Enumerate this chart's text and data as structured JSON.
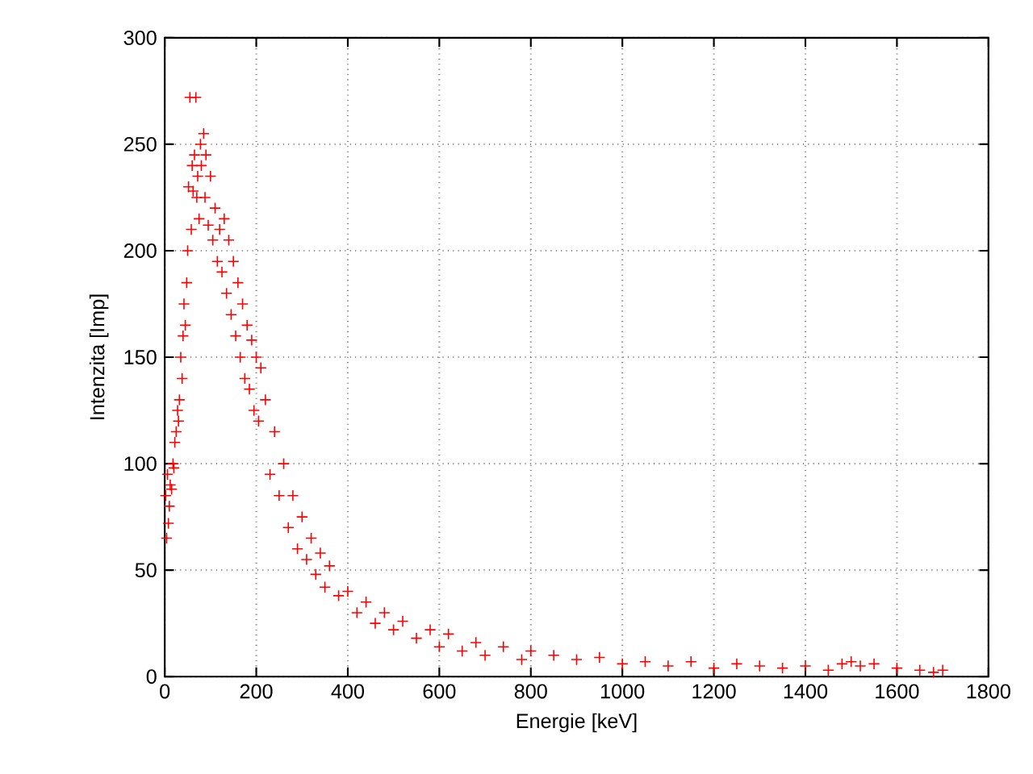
{
  "chart_data": {
    "type": "scatter",
    "xlabel": "Energie [keV]",
    "ylabel": "Intenzita [Imp]",
    "xlim": [
      0,
      1800
    ],
    "ylim": [
      0,
      300
    ],
    "xticks": [
      0,
      200,
      400,
      600,
      800,
      1000,
      1200,
      1400,
      1600,
      1800
    ],
    "yticks": [
      0,
      50,
      100,
      150,
      200,
      250,
      300
    ],
    "grid": true,
    "marker": "cross",
    "series": [
      {
        "color": "#ff0000",
        "x": [
          2,
          4,
          6,
          8,
          10,
          12,
          15,
          18,
          20,
          22,
          25,
          28,
          30,
          32,
          35,
          38,
          40,
          42,
          45,
          48,
          50,
          52,
          55,
          58,
          60,
          62,
          65,
          68,
          70,
          72,
          75,
          78,
          80,
          85,
          88,
          90,
          95,
          100,
          105,
          110,
          115,
          120,
          125,
          130,
          135,
          140,
          145,
          150,
          155,
          160,
          165,
          170,
          175,
          180,
          185,
          190,
          195,
          200,
          205,
          210,
          220,
          230,
          240,
          250,
          260,
          270,
          280,
          290,
          300,
          310,
          320,
          330,
          340,
          350,
          360,
          380,
          400,
          420,
          440,
          460,
          480,
          500,
          520,
          550,
          580,
          600,
          620,
          650,
          680,
          700,
          740,
          780,
          800,
          850,
          900,
          950,
          1000,
          1050,
          1100,
          1150,
          1200,
          1250,
          1300,
          1350,
          1400,
          1450,
          1480,
          1500,
          1520,
          1550,
          1600,
          1650,
          1680,
          1700
        ],
        "values": [
          85,
          65,
          95,
          72,
          80,
          90,
          88,
          100,
          98,
          110,
          115,
          125,
          120,
          130,
          150,
          140,
          160,
          175,
          165,
          185,
          200,
          230,
          272,
          210,
          240,
          228,
          245,
          272,
          225,
          235,
          215,
          250,
          240,
          255,
          225,
          245,
          212,
          235,
          205,
          220,
          195,
          210,
          190,
          215,
          180,
          205,
          170,
          195,
          160,
          185,
          150,
          175,
          140,
          165,
          135,
          158,
          125,
          150,
          120,
          145,
          130,
          95,
          115,
          85,
          100,
          70,
          85,
          60,
          75,
          55,
          65,
          48,
          58,
          42,
          52,
          38,
          40,
          30,
          35,
          25,
          30,
          22,
          26,
          18,
          22,
          14,
          20,
          12,
          16,
          10,
          14,
          8,
          12,
          10,
          8,
          9,
          6,
          7,
          5,
          7,
          4,
          6,
          5,
          4,
          5,
          3,
          6,
          7,
          5,
          6,
          4,
          3,
          2,
          3
        ]
      }
    ]
  }
}
